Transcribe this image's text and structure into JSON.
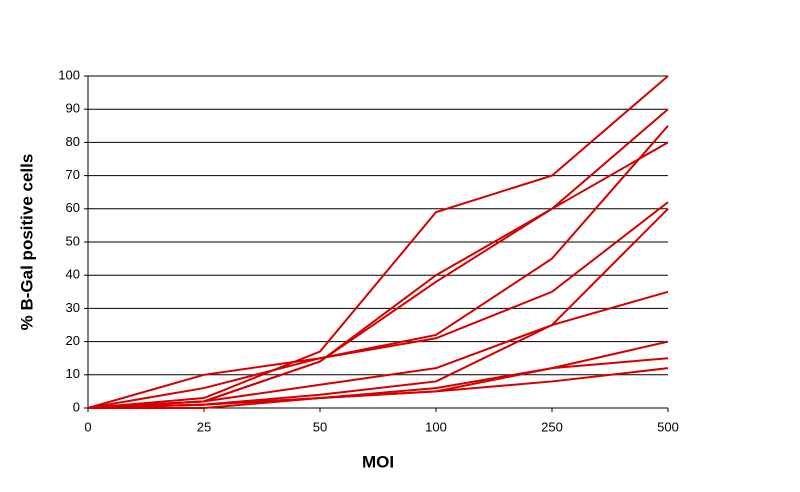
{
  "chart_data": {
    "type": "line",
    "x_label": "MOI",
    "y_label": "% B-Gal positive cells",
    "categories": [
      "0",
      "25",
      "50",
      "100",
      "250",
      "500"
    ],
    "series": [
      {
        "color": "#d40000",
        "values": [
          0,
          3,
          17,
          59,
          70,
          100
        ]
      },
      {
        "color": "#d40000",
        "values": [
          0,
          2,
          14,
          40,
          60,
          90
        ]
      },
      {
        "color": "#d40000",
        "values": [
          0,
          2,
          14,
          38,
          60,
          80
        ]
      },
      {
        "color": "#d40000",
        "values": [
          0,
          6,
          15,
          22,
          45,
          85
        ]
      },
      {
        "color": "#d40000",
        "values": [
          0,
          10,
          15,
          21,
          35,
          62
        ]
      },
      {
        "color": "#d40000",
        "values": [
          0,
          2,
          7,
          12,
          25,
          60
        ]
      },
      {
        "color": "#d40000",
        "values": [
          0,
          1,
          4,
          8,
          25,
          35
        ]
      },
      {
        "color": "#d40000",
        "values": [
          0,
          1,
          3,
          6,
          12,
          20
        ]
      },
      {
        "color": "#d40000",
        "values": [
          0,
          1,
          3,
          5,
          12,
          15
        ]
      },
      {
        "color": "#d40000",
        "values": [
          0,
          0,
          3,
          5,
          8,
          12
        ]
      }
    ],
    "ylim": [
      0,
      100
    ],
    "yticks": [
      0,
      10,
      20,
      30,
      40,
      50,
      60,
      70,
      80,
      90,
      100
    ],
    "grid": true
  }
}
